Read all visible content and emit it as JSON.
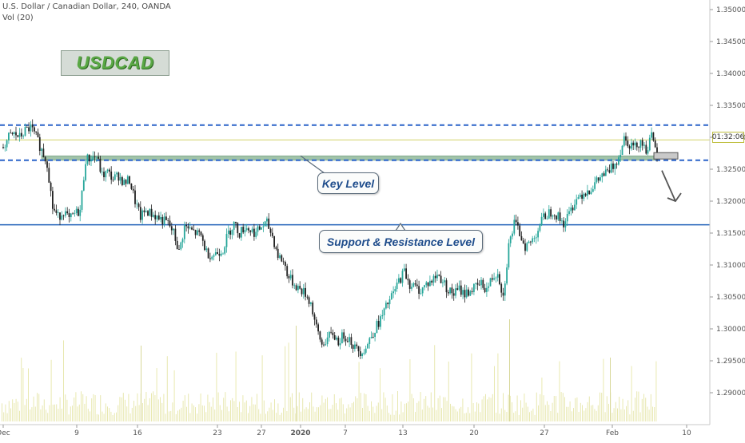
{
  "header": {
    "title": "U.S. Dollar / Canadian Dollar, 240, OANDA",
    "volume_label": "Vol (20)"
  },
  "logo": {
    "text": "USDCAD"
  },
  "annotations": {
    "key_level": "Key Level",
    "support_resistance": "Support & Resistance Level"
  },
  "price_badge": "01:32:06",
  "colors": {
    "bull": "#26a69a",
    "bear": "#222222",
    "zone_fill": "#8fb99a",
    "dashed_line": "#2a63c9",
    "solid_line": "#1f5fb8",
    "price_line": "#d4d46a",
    "volume": "#e8e8b0"
  },
  "chart_data": {
    "type": "candlestick",
    "title": "U.S. Dollar / Canadian Dollar, 240, OANDA",
    "y_axis": {
      "position": "right",
      "range": [
        1.2855,
        1.3515
      ],
      "ticks": [
        "1.35000",
        "1.34500",
        "1.34000",
        "1.33500",
        "1.33000",
        "1.32500",
        "1.32000",
        "1.31500",
        "1.31000",
        "1.30500",
        "1.30000",
        "1.29500",
        "1.29000"
      ]
    },
    "x_axis": {
      "ticks": [
        "Dec",
        "9",
        "16",
        "23",
        "27",
        "2020",
        "7",
        "13",
        "20",
        "27",
        "Feb",
        "10"
      ]
    },
    "levels": {
      "resistance_dashed_upper": 1.3319,
      "resistance_dashed_lower": 1.3264,
      "key_level_zone": [
        1.3264,
        1.3271
      ],
      "support_resistance_solid": 1.3163,
      "current_price": 1.3296,
      "forecast_box": [
        1.3266,
        1.3276
      ]
    },
    "price_path": [
      [
        0,
        1.3285
      ],
      [
        1,
        1.33
      ],
      [
        2,
        1.3305
      ],
      [
        3,
        1.33
      ],
      [
        4,
        1.331
      ],
      [
        5,
        1.3315
      ],
      [
        6,
        1.33
      ],
      [
        7,
        1.328
      ],
      [
        8,
        1.326
      ],
      [
        9,
        1.319
      ],
      [
        10,
        1.3175
      ],
      [
        11,
        1.3185
      ],
      [
        12,
        1.317
      ],
      [
        13,
        1.318
      ],
      [
        14,
        1.3185
      ],
      [
        15,
        1.3265
      ],
      [
        16,
        1.3268
      ],
      [
        17,
        1.327
      ],
      [
        18,
        1.324
      ],
      [
        19,
        1.3245
      ],
      [
        20,
        1.3235
      ],
      [
        21,
        1.324
      ],
      [
        22,
        1.3228
      ],
      [
        23,
        1.3233
      ],
      [
        24,
        1.32
      ],
      [
        25,
        1.3175
      ],
      [
        26,
        1.3185
      ],
      [
        27,
        1.318
      ],
      [
        28,
        1.3175
      ],
      [
        29,
        1.317
      ],
      [
        30,
        1.3165
      ],
      [
        31,
        1.315
      ],
      [
        32,
        1.312
      ],
      [
        33,
        1.316
      ],
      [
        34,
        1.3155
      ],
      [
        35,
        1.315
      ],
      [
        36,
        1.3145
      ],
      [
        37,
        1.312
      ],
      [
        38,
        1.3115
      ],
      [
        39,
        1.312
      ],
      [
        40,
        1.3125
      ],
      [
        41,
        1.315
      ],
      [
        42,
        1.3165
      ],
      [
        43,
        1.315
      ],
      [
        44,
        1.316
      ],
      [
        45,
        1.3155
      ],
      [
        46,
        1.315
      ],
      [
        47,
        1.316
      ],
      [
        48,
        1.3165
      ],
      [
        49,
        1.3145
      ],
      [
        50,
        1.3115
      ],
      [
        51,
        1.3105
      ],
      [
        52,
        1.308
      ],
      [
        53,
        1.307
      ],
      [
        54,
        1.3062
      ],
      [
        55,
        1.3055
      ],
      [
        56,
        1.304
      ],
      [
        57,
        1.3
      ],
      [
        58,
        1.2975
      ],
      [
        59,
        1.2985
      ],
      [
        60,
        1.2992
      ],
      [
        61,
        1.298
      ],
      [
        62,
        1.299
      ],
      [
        63,
        1.2985
      ],
      [
        64,
        1.297
      ],
      [
        65,
        1.2965
      ],
      [
        66,
        1.297
      ],
      [
        67,
        1.299
      ],
      [
        68,
        1.3005
      ],
      [
        69,
        1.302
      ],
      [
        70,
        1.304
      ],
      [
        71,
        1.3055
      ],
      [
        72,
        1.3075
      ],
      [
        73,
        1.309
      ],
      [
        74,
        1.307
      ],
      [
        75,
        1.3065
      ],
      [
        76,
        1.306
      ],
      [
        77,
        1.307
      ],
      [
        78,
        1.3075
      ],
      [
        79,
        1.3085
      ],
      [
        80,
        1.3075
      ],
      [
        81,
        1.306
      ],
      [
        82,
        1.3055
      ],
      [
        83,
        1.3062
      ],
      [
        84,
        1.3055
      ],
      [
        85,
        1.306
      ],
      [
        86,
        1.3065
      ],
      [
        87,
        1.307
      ],
      [
        88,
        1.3062
      ],
      [
        89,
        1.308
      ],
      [
        90,
        1.309
      ],
      [
        91,
        1.305
      ],
      [
        92,
        1.313
      ],
      [
        93,
        1.3165
      ],
      [
        94,
        1.315
      ],
      [
        95,
        1.313
      ],
      [
        96,
        1.3135
      ],
      [
        97,
        1.315
      ],
      [
        98,
        1.317
      ],
      [
        99,
        1.318
      ],
      [
        100,
        1.3185
      ],
      [
        101,
        1.3175
      ],
      [
        102,
        1.3165
      ],
      [
        103,
        1.318
      ],
      [
        104,
        1.32
      ],
      [
        105,
        1.321
      ],
      [
        106,
        1.3215
      ],
      [
        107,
        1.322
      ],
      [
        108,
        1.323
      ],
      [
        109,
        1.324
      ],
      [
        110,
        1.3245
      ],
      [
        111,
        1.3255
      ],
      [
        112,
        1.327
      ],
      [
        113,
        1.33
      ],
      [
        114,
        1.329
      ],
      [
        115,
        1.3285
      ],
      [
        116,
        1.3295
      ],
      [
        117,
        1.328
      ],
      [
        118,
        1.33
      ],
      [
        119,
        1.327
      ]
    ],
    "forecast_arrow": {
      "from": [
        1.327,
        "Feb"
      ],
      "to": [
        1.32,
        "Feb+"
      ]
    },
    "volume": {
      "label": "Vol (20)",
      "visible": true
    }
  }
}
